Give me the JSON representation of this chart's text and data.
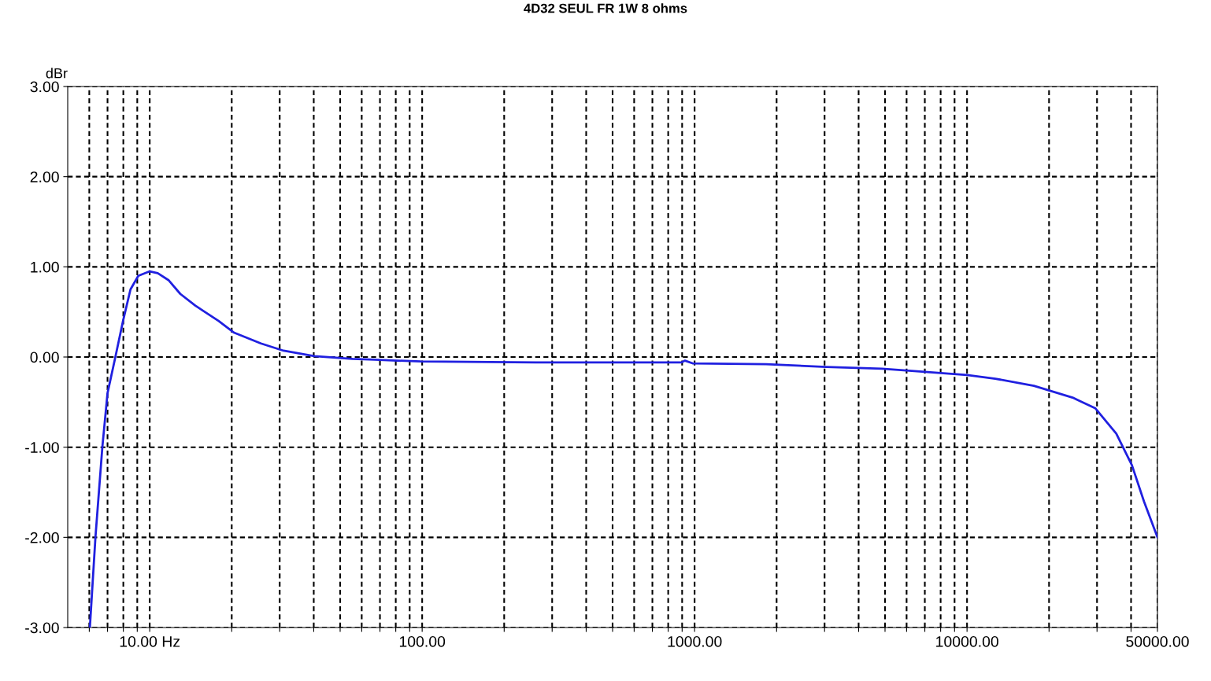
{
  "chart_data": {
    "type": "line",
    "title": "4D32 SEUL FR 1W 8 ohms",
    "ylabel": "dBr",
    "log": "x",
    "grid": true,
    "line_style": "solid",
    "marker": "none",
    "xlim": [
      5,
      50000
    ],
    "ylim": [
      -3,
      3
    ],
    "xticks": [
      {
        "value": 6,
        "label": null
      },
      {
        "value": 7,
        "label": null
      },
      {
        "value": 8,
        "label": null
      },
      {
        "value": 9,
        "label": null
      },
      {
        "value": 10,
        "label": "10.00 Hz"
      },
      {
        "value": 20,
        "label": null
      },
      {
        "value": 30,
        "label": null
      },
      {
        "value": 40,
        "label": null
      },
      {
        "value": 50,
        "label": null
      },
      {
        "value": 60,
        "label": null
      },
      {
        "value": 70,
        "label": null
      },
      {
        "value": 80,
        "label": null
      },
      {
        "value": 90,
        "label": null
      },
      {
        "value": 100,
        "label": "100.00"
      },
      {
        "value": 200,
        "label": null
      },
      {
        "value": 300,
        "label": null
      },
      {
        "value": 400,
        "label": null
      },
      {
        "value": 500,
        "label": null
      },
      {
        "value": 600,
        "label": null
      },
      {
        "value": 700,
        "label": null
      },
      {
        "value": 800,
        "label": null
      },
      {
        "value": 900,
        "label": null
      },
      {
        "value": 1000,
        "label": "1000.00"
      },
      {
        "value": 2000,
        "label": null
      },
      {
        "value": 3000,
        "label": null
      },
      {
        "value": 4000,
        "label": null
      },
      {
        "value": 5000,
        "label": null
      },
      {
        "value": 6000,
        "label": null
      },
      {
        "value": 7000,
        "label": null
      },
      {
        "value": 8000,
        "label": null
      },
      {
        "value": 9000,
        "label": null
      },
      {
        "value": 10000,
        "label": "10000.00"
      },
      {
        "value": 20000,
        "label": null
      },
      {
        "value": 30000,
        "label": null
      },
      {
        "value": 40000,
        "label": null
      },
      {
        "value": 50000,
        "label": "50000.00"
      }
    ],
    "yticks": [
      {
        "value": -3,
        "label": "-3.00"
      },
      {
        "value": -2,
        "label": "-2.00"
      },
      {
        "value": -1,
        "label": "-1.00"
      },
      {
        "value": 0,
        "label": "0.00"
      },
      {
        "value": 1,
        "label": "1.00"
      },
      {
        "value": 2,
        "label": "2.00"
      },
      {
        "value": 3,
        "label": "3.00"
      }
    ],
    "series": [
      {
        "color": "#2020e0",
        "x": [
          6.03,
          6.32,
          6.7,
          7.0,
          7.48,
          7.98,
          8.5,
          9.08,
          10,
          10.7,
          11.75,
          12.95,
          14.7,
          17.9,
          20.4,
          25.6,
          31,
          40.2,
          55.5,
          67,
          99,
          262,
          895,
          922,
          983,
          1830,
          3040,
          4880,
          6700,
          10000,
          12700,
          17600,
          24400,
          29600,
          35300,
          40300,
          44600,
          50000
        ],
        "values": [
          -3,
          -2,
          -1,
          -0.4,
          0,
          0.4,
          0.75,
          0.9,
          0.95,
          0.93,
          0.85,
          0.7,
          0.57,
          0.4,
          0.27,
          0.15,
          0.07,
          0.01,
          -0.02,
          -0.03,
          -0.05,
          -0.06,
          -0.06,
          -0.04,
          -0.07,
          -0.08,
          -0.11,
          -0.13,
          -0.16,
          -0.2,
          -0.24,
          -0.32,
          -0.45,
          -0.57,
          -0.85,
          -1.2,
          -1.6,
          -2.0
        ]
      }
    ]
  }
}
